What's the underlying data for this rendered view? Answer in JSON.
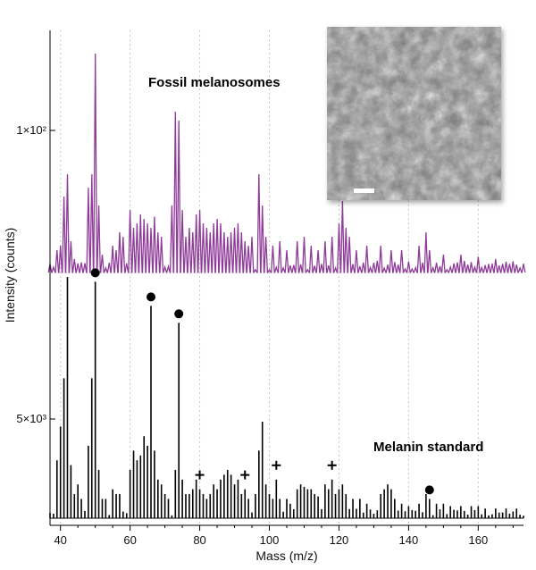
{
  "chart_data": {
    "type": "line",
    "xlabel": "Mass (m/z)",
    "ylabel": "Intensity (counts)",
    "xlim": [
      37,
      173
    ],
    "x_ticks": [
      40,
      60,
      80,
      100,
      120,
      140,
      160
    ],
    "x_tick_labels": [
      "40",
      "60",
      "80",
      "100",
      "120",
      "140",
      "160"
    ],
    "y_tick_labels": [
      "1×10²",
      "5×10³"
    ],
    "grid": "vertical dotted lines at x ticks",
    "colors": {
      "top": "#8e3a98",
      "bottom": "#000000"
    },
    "series": [
      {
        "name": "Fossil melanosomes",
        "baseline_intensity": 0,
        "peaks": [
          [
            39,
            10
          ],
          [
            40,
            12
          ],
          [
            41,
            34
          ],
          [
            42,
            44
          ],
          [
            43,
            14
          ],
          [
            44,
            6
          ],
          [
            48,
            38
          ],
          [
            49,
            44
          ],
          [
            50,
            98
          ],
          [
            51,
            30
          ],
          [
            52,
            8
          ],
          [
            55,
            12
          ],
          [
            56,
            10
          ],
          [
            57,
            18
          ],
          [
            58,
            16
          ],
          [
            60,
            28
          ],
          [
            61,
            20
          ],
          [
            62,
            22
          ],
          [
            63,
            26
          ],
          [
            64,
            24
          ],
          [
            65,
            22
          ],
          [
            66,
            20
          ],
          [
            67,
            25
          ],
          [
            68,
            18
          ],
          [
            69,
            16
          ],
          [
            72,
            30
          ],
          [
            73,
            72
          ],
          [
            74,
            68
          ],
          [
            75,
            28
          ],
          [
            76,
            16
          ],
          [
            77,
            20
          ],
          [
            78,
            18
          ],
          [
            79,
            26
          ],
          [
            80,
            28
          ],
          [
            81,
            22
          ],
          [
            82,
            20
          ],
          [
            83,
            18
          ],
          [
            84,
            22
          ],
          [
            85,
            24
          ],
          [
            86,
            22
          ],
          [
            87,
            18
          ],
          [
            88,
            16
          ],
          [
            89,
            18
          ],
          [
            90,
            20
          ],
          [
            91,
            22
          ],
          [
            92,
            18
          ],
          [
            93,
            14
          ],
          [
            94,
            12
          ],
          [
            95,
            16
          ],
          [
            97,
            44
          ],
          [
            98,
            30
          ],
          [
            99,
            16
          ],
          [
            101,
            12
          ],
          [
            103,
            14
          ],
          [
            105,
            10
          ],
          [
            108,
            14
          ],
          [
            110,
            16
          ],
          [
            112,
            12
          ],
          [
            114,
            10
          ],
          [
            116,
            14
          ],
          [
            118,
            16
          ],
          [
            120,
            22
          ],
          [
            121,
            32
          ],
          [
            122,
            20
          ],
          [
            123,
            16
          ],
          [
            125,
            10
          ],
          [
            128,
            12
          ],
          [
            132,
            12
          ],
          [
            135,
            10
          ],
          [
            138,
            10
          ],
          [
            143,
            12
          ],
          [
            145,
            18
          ],
          [
            146,
            10
          ],
          [
            150,
            8
          ],
          [
            155,
            8
          ],
          [
            160,
            7
          ],
          [
            165,
            6
          ],
          [
            170,
            5
          ]
        ]
      },
      {
        "name": "Melanin standard",
        "baseline_intensity": 0,
        "peaks": [
          [
            39,
            24
          ],
          [
            40,
            38
          ],
          [
            41,
            58
          ],
          [
            42,
            100
          ],
          [
            43,
            22
          ],
          [
            44,
            10
          ],
          [
            45,
            14
          ],
          [
            46,
            8
          ],
          [
            48,
            30
          ],
          [
            49,
            58
          ],
          [
            50,
            98
          ],
          [
            51,
            20
          ],
          [
            52,
            8
          ],
          [
            53,
            8
          ],
          [
            55,
            12
          ],
          [
            56,
            10
          ],
          [
            57,
            10
          ],
          [
            60,
            20
          ],
          [
            61,
            28
          ],
          [
            62,
            24
          ],
          [
            63,
            26
          ],
          [
            64,
            34
          ],
          [
            65,
            30
          ],
          [
            66,
            88
          ],
          [
            67,
            28
          ],
          [
            68,
            16
          ],
          [
            69,
            14
          ],
          [
            70,
            10
          ],
          [
            71,
            8
          ],
          [
            73,
            20
          ],
          [
            74,
            81
          ],
          [
            75,
            16
          ],
          [
            76,
            10
          ],
          [
            77,
            10
          ],
          [
            78,
            12
          ],
          [
            79,
            16
          ],
          [
            80,
            12
          ],
          [
            81,
            10
          ],
          [
            82,
            8
          ],
          [
            83,
            10
          ],
          [
            84,
            14
          ],
          [
            85,
            12
          ],
          [
            86,
            16
          ],
          [
            87,
            18
          ],
          [
            88,
            20
          ],
          [
            89,
            18
          ],
          [
            90,
            14
          ],
          [
            91,
            16
          ],
          [
            92,
            10
          ],
          [
            93,
            12
          ],
          [
            94,
            8
          ],
          [
            96,
            10
          ],
          [
            97,
            28
          ],
          [
            98,
            40
          ],
          [
            99,
            14
          ],
          [
            100,
            10
          ],
          [
            101,
            8
          ],
          [
            102,
            16
          ],
          [
            103,
            8
          ],
          [
            105,
            8
          ],
          [
            106,
            6
          ],
          [
            108,
            12
          ],
          [
            109,
            14
          ],
          [
            110,
            13
          ],
          [
            111,
            12
          ],
          [
            112,
            12
          ],
          [
            113,
            10
          ],
          [
            114,
            9
          ],
          [
            116,
            14
          ],
          [
            117,
            12
          ],
          [
            118,
            16
          ],
          [
            119,
            10
          ],
          [
            120,
            12
          ],
          [
            121,
            14
          ],
          [
            122,
            10
          ],
          [
            124,
            8
          ],
          [
            126,
            8
          ],
          [
            128,
            6
          ],
          [
            132,
            10
          ],
          [
            133,
            12
          ],
          [
            134,
            14
          ],
          [
            135,
            12
          ],
          [
            136,
            8
          ],
          [
            138,
            6
          ],
          [
            140,
            5
          ],
          [
            143,
            6
          ],
          [
            145,
            10
          ],
          [
            146,
            8
          ],
          [
            148,
            6
          ],
          [
            150,
            6
          ],
          [
            152,
            5
          ],
          [
            155,
            5
          ],
          [
            158,
            5
          ],
          [
            160,
            5
          ],
          [
            162,
            4
          ],
          [
            165,
            4
          ],
          [
            168,
            4
          ],
          [
            171,
            4
          ]
        ],
        "markers": {
          "dot": [
            50,
            66,
            74,
            146
          ],
          "plus": [
            80,
            93,
            102,
            118
          ]
        }
      }
    ],
    "inset": {
      "type": "micrograph",
      "description_visible": "scanning electron micrograph with scale bar",
      "placement": "top-right"
    }
  }
}
